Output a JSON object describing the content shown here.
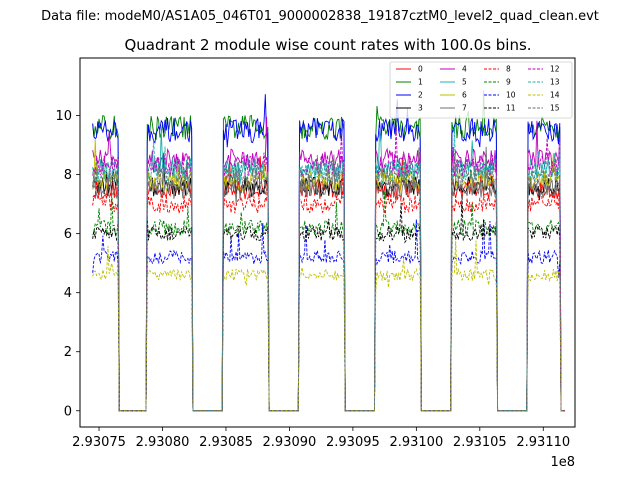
{
  "chart_data": {
    "type": "line",
    "suptitle": "Data file: modeM0/AS1A05_046T01_9000002838_19187cztM0_level2_quad_clean.evt",
    "title": "Quadrant 2 module wise count rates with 100.0s bins.",
    "xlabel": "",
    "ylabel": "",
    "x_offset_label": "1e8",
    "xlim": [
      2.930735,
      2.931125
    ],
    "ylim": [
      -0.55,
      11.95
    ],
    "x_ticks": [
      2.93075,
      2.9308,
      2.93085,
      2.9309,
      2.93095,
      2.931,
      2.93105,
      2.9311
    ],
    "x_tick_labels": [
      "2.93075",
      "2.93080",
      "2.93085",
      "2.93090",
      "2.93095",
      "2.93100",
      "2.93105",
      "2.93110"
    ],
    "y_ticks": [
      0,
      2,
      4,
      6,
      8,
      10
    ],
    "y_tick_labels": [
      "0",
      "2",
      "4",
      "6",
      "8",
      "10"
    ],
    "bin_seconds": 100.0,
    "x_start": 2.930745,
    "x_end": 2.931117,
    "on_intervals": [
      [
        2.930745,
        2.930765
      ],
      [
        2.930788,
        2.930823
      ],
      [
        2.930848,
        2.930883
      ],
      [
        2.930908,
        2.930943
      ],
      [
        2.930968,
        2.931003
      ],
      [
        2.931028,
        2.931063
      ],
      [
        2.931088,
        2.931113
      ]
    ],
    "noise_amplitude": 0.35,
    "legend": {
      "location": "upper right",
      "columns": 4
    },
    "series": [
      {
        "name": "0",
        "level": 7.5,
        "color": "#ff0000",
        "dashed": false
      },
      {
        "name": "1",
        "level": 9.6,
        "color": "#008000",
        "dashed": false
      },
      {
        "name": "2",
        "level": 9.5,
        "color": "#0000ff",
        "dashed": false
      },
      {
        "name": "3",
        "level": 7.6,
        "color": "#000000",
        "dashed": false
      },
      {
        "name": "4",
        "level": 8.5,
        "color": "#bf00bf",
        "dashed": false
      },
      {
        "name": "5",
        "level": 8.2,
        "color": "#20b2aa",
        "dashed": false
      },
      {
        "name": "6",
        "level": 7.8,
        "color": "#bfbf00",
        "dashed": false
      },
      {
        "name": "7",
        "level": 7.5,
        "color": "#707070",
        "dashed": false
      },
      {
        "name": "8",
        "level": 7.0,
        "color": "#ff0000",
        "dashed": true
      },
      {
        "name": "9",
        "level": 6.2,
        "color": "#008000",
        "dashed": true
      },
      {
        "name": "10",
        "level": 5.2,
        "color": "#0000ff",
        "dashed": true
      },
      {
        "name": "11",
        "level": 6.0,
        "color": "#000000",
        "dashed": true
      },
      {
        "name": "12",
        "level": 8.3,
        "color": "#bf00bf",
        "dashed": true
      },
      {
        "name": "13",
        "level": 8.1,
        "color": "#20b2aa",
        "dashed": true
      },
      {
        "name": "14",
        "level": 4.6,
        "color": "#bfbf00",
        "dashed": true
      },
      {
        "name": "15",
        "level": 7.9,
        "color": "#707070",
        "dashed": true
      }
    ]
  }
}
